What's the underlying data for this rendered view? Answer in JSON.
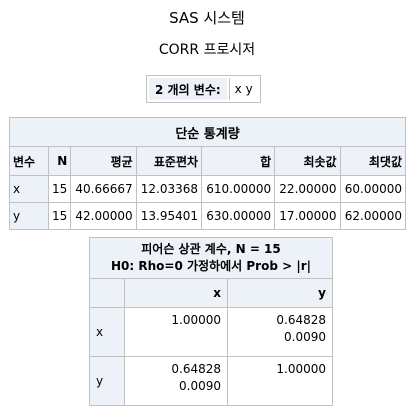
{
  "titles": {
    "system": "SAS 시스템",
    "procedure": "CORR 프로시저"
  },
  "variables": {
    "label": "2 개의 변수:",
    "value": "x y"
  },
  "simple_stats": {
    "caption": "단순 통계량",
    "headers": [
      "변수",
      "N",
      "평균",
      "표준편차",
      "합",
      "최솟값",
      "최댓값"
    ],
    "rows": [
      [
        "x",
        "15",
        "40.66667",
        "12.03368",
        "610.00000",
        "22.00000",
        "60.00000"
      ],
      [
        "y",
        "15",
        "42.00000",
        "13.95401",
        "630.00000",
        "17.00000",
        "62.00000"
      ]
    ]
  },
  "correlation": {
    "caption_line1": "피어슨 상관 계수, N = 15",
    "caption_line2": "H0: Rho=0 가정하에서 Prob > |r|",
    "col_headers": [
      "x",
      "y"
    ],
    "rows": [
      {
        "label": "x",
        "cells": [
          {
            "r": "1.00000",
            "p": ""
          },
          {
            "r": "0.64828",
            "p": "0.0090"
          }
        ]
      },
      {
        "label": "y",
        "cells": [
          {
            "r": "0.64828",
            "p": "0.0090"
          },
          {
            "r": "1.00000",
            "p": ""
          }
        ]
      }
    ]
  },
  "colors": {
    "header_bg": "#edf2f9",
    "border": "#c1c1c1"
  }
}
